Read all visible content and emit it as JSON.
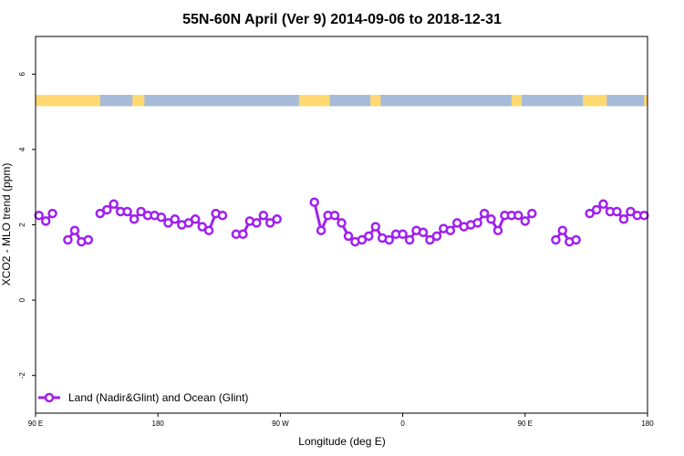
{
  "chart_data": {
    "type": "line",
    "title": "55N-60N April (Ver 9)   2014-09-06 to 2018-12-31",
    "xlabel": "Longitude (deg E)",
    "ylabel": "XCO2 - MLO trend (ppm)",
    "xlim": [
      -90,
      270
    ],
    "ylim": [
      -3,
      7
    ],
    "x_ticks": [
      {
        "value": -90,
        "label": "90 E"
      },
      {
        "value": -18,
        "label": "180"
      },
      {
        "value": 54,
        "label": "90 W"
      },
      {
        "value": 126,
        "label": "0"
      },
      {
        "value": 198,
        "label": "90 E"
      },
      {
        "value": 270,
        "label": "180"
      }
    ],
    "y_ticks": [
      {
        "value": -2,
        "label": "-2"
      },
      {
        "value": 0,
        "label": "0"
      },
      {
        "value": 2,
        "label": "2"
      },
      {
        "value": 4,
        "label": "4"
      },
      {
        "value": 6,
        "label": "6"
      }
    ],
    "grid": false,
    "legend_position": "bottom-left",
    "land_ocean_strip": {
      "y_range": [
        5.15,
        5.45
      ],
      "land_color": "#ffd970",
      "ocean_color": "#a7bcd9",
      "ocean_segments": [
        [
          -52,
          -33
        ],
        [
          -26,
          65
        ],
        [
          83,
          107
        ],
        [
          113,
          190
        ],
        [
          196,
          232
        ],
        [
          246,
          268
        ]
      ]
    },
    "series": [
      {
        "name": "Land (Nadir&Glint) and Ocean (Glint)",
        "color": "#a020f0",
        "segments": [
          [
            [
              -88,
              2.25
            ],
            [
              -84,
              2.1
            ],
            [
              -80,
              2.3
            ]
          ],
          [
            [
              -71,
              1.6
            ],
            [
              -67,
              1.85
            ],
            [
              -63,
              1.55
            ],
            [
              -59,
              1.6
            ]
          ],
          [
            [
              -52,
              2.3
            ],
            [
              -48,
              2.4
            ],
            [
              -44,
              2.55
            ],
            [
              -40,
              2.35
            ],
            [
              -36,
              2.35
            ],
            [
              -32,
              2.15
            ],
            [
              -28,
              2.35
            ],
            [
              -24,
              2.25
            ],
            [
              -20,
              2.25
            ],
            [
              -16,
              2.2
            ],
            [
              -12,
              2.05
            ],
            [
              -8,
              2.15
            ],
            [
              -4,
              2.0
            ],
            [
              0,
              2.05
            ],
            [
              4,
              2.15
            ],
            [
              8,
              1.95
            ],
            [
              12,
              1.85
            ],
            [
              16,
              2.3
            ],
            [
              20,
              2.25
            ]
          ],
          [
            [
              28,
              1.75
            ],
            [
              32,
              1.75
            ],
            [
              36,
              2.1
            ],
            [
              40,
              2.05
            ],
            [
              44,
              2.25
            ],
            [
              48,
              2.05
            ],
            [
              52,
              2.15
            ]
          ],
          [
            [
              74,
              2.6
            ],
            [
              78,
              1.85
            ],
            [
              82,
              2.25
            ],
            [
              86,
              2.25
            ],
            [
              90,
              2.05
            ],
            [
              94,
              1.7
            ],
            [
              98,
              1.55
            ],
            [
              102,
              1.6
            ],
            [
              106,
              1.7
            ],
            [
              110,
              1.95
            ],
            [
              114,
              1.65
            ],
            [
              118,
              1.6
            ],
            [
              122,
              1.75
            ],
            [
              126,
              1.75
            ],
            [
              130,
              1.6
            ],
            [
              134,
              1.85
            ],
            [
              138,
              1.8
            ],
            [
              142,
              1.6
            ],
            [
              146,
              1.7
            ],
            [
              150,
              1.9
            ],
            [
              154,
              1.85
            ],
            [
              158,
              2.05
            ],
            [
              162,
              1.95
            ],
            [
              166,
              2.0
            ],
            [
              170,
              2.05
            ],
            [
              174,
              2.3
            ],
            [
              178,
              2.15
            ],
            [
              182,
              1.85
            ],
            [
              186,
              2.25
            ],
            [
              190,
              2.25
            ],
            [
              194,
              2.25
            ],
            [
              198,
              2.1
            ],
            [
              202,
              2.3
            ]
          ],
          [
            [
              216,
              1.6
            ],
            [
              220,
              1.85
            ],
            [
              224,
              1.55
            ],
            [
              228,
              1.6
            ]
          ],
          [
            [
              236,
              2.3
            ],
            [
              240,
              2.4
            ],
            [
              244,
              2.55
            ],
            [
              248,
              2.35
            ],
            [
              252,
              2.35
            ],
            [
              256,
              2.15
            ],
            [
              260,
              2.35
            ],
            [
              264,
              2.25
            ],
            [
              268,
              2.25
            ]
          ]
        ]
      }
    ]
  }
}
